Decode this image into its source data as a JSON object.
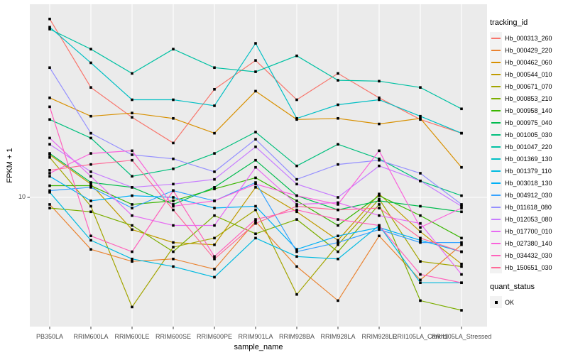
{
  "figure": {
    "panel_bg": "#EBEBEB",
    "grid_color": "#FFFFFF",
    "tick_text_color": "#4D4D4D",
    "tick_mark_color": "#333333",
    "legend_key_bg": "#F2F2F2",
    "point_color": "#000000"
  },
  "chart_data": {
    "type": "line",
    "title": "",
    "xlabel": "sample_name",
    "ylabel": "FPKM + 1",
    "y_scale": "log10",
    "y_ticks": [
      "10"
    ],
    "ylim": [
      4.6,
      30.5
    ],
    "grid": "major-on",
    "legend_position": "right",
    "point_marker": "filled-black-square",
    "categories": [
      "PB350LA",
      "RRIM600LA",
      "RRIM600LE",
      "RRIM600SE",
      "RRIM600PE",
      "RRIM901LA",
      "RRIM928BA",
      "RRIM928LA",
      "RRIM928LE",
      "RRII105LA_Control",
      "RRII105LA_Stressed"
    ],
    "series": [
      {
        "name": "Hb_000313_260",
        "color": "#F8766D",
        "values": [
          28.1,
          18.9,
          15.9,
          13.7,
          18.7,
          22.1,
          17.6,
          20.5,
          17.8,
          15.7,
          14.5
        ]
      },
      {
        "name": "Hb_000429_220",
        "color": "#EA8331",
        "values": [
          9.6,
          7.4,
          6.9,
          7.0,
          6.6,
          8.7,
          6.7,
          5.5,
          8.0,
          6.2,
          7.6
        ]
      },
      {
        "name": "Hb_000462_060",
        "color": "#D89000",
        "values": [
          17.8,
          16.0,
          16.3,
          15.8,
          14.5,
          18.5,
          15.7,
          15.8,
          15.3,
          15.8,
          11.9
        ]
      },
      {
        "name": "Hb_000544_010",
        "color": "#C09B00",
        "values": [
          12.8,
          10.8,
          8.3,
          7.7,
          7.6,
          10.6,
          9.2,
          7.8,
          10.2,
          8.2,
          6.8
        ]
      },
      {
        "name": "Hb_000671_070",
        "color": "#A3A500",
        "values": [
          12.6,
          9.5,
          5.3,
          7.5,
          7.9,
          9.3,
          5.7,
          7.6,
          9.9,
          6.9,
          6.7
        ]
      },
      {
        "name": "Hb_000853_210",
        "color": "#7CAE00",
        "values": [
          9.4,
          9.2,
          8.5,
          7.3,
          9.0,
          8.1,
          8.8,
          7.3,
          9.6,
          5.5,
          5.2
        ]
      },
      {
        "name": "Hb_000958_140",
        "color": "#39B600",
        "values": [
          10.7,
          10.7,
          9.6,
          9.8,
          10.5,
          11.2,
          9.8,
          8.5,
          10.1,
          9.0,
          7.9
        ]
      },
      {
        "name": "Hb_000975_040",
        "color": "#00BB4E",
        "values": [
          12.9,
          10.9,
          10.6,
          9.6,
          10.6,
          12.4,
          10.1,
          9.3,
          9.8,
          9.5,
          9.2
        ]
      },
      {
        "name": "Hb_001005_030",
        "color": "#00BF7D",
        "values": [
          15.7,
          14.1,
          11.3,
          11.8,
          12.9,
          14.6,
          12.0,
          13.6,
          12.5,
          11.0,
          10.1
        ]
      },
      {
        "name": "Hb_001047_220",
        "color": "#00C1A3",
        "values": [
          26.5,
          23.6,
          20.5,
          23.6,
          21.2,
          20.7,
          22.7,
          19.7,
          19.6,
          18.9,
          16.7
        ]
      },
      {
        "name": "Hb_001369_130",
        "color": "#00BFC4",
        "values": [
          26.8,
          21.8,
          17.6,
          17.6,
          17.0,
          24.4,
          15.8,
          17.1,
          17.6,
          16.0,
          14.5
        ]
      },
      {
        "name": "Hb_001379_110",
        "color": "#00BAE0",
        "values": [
          10.3,
          7.8,
          7.0,
          6.7,
          6.3,
          7.9,
          7.1,
          7.0,
          8.5,
          6.1,
          6.1
        ]
      },
      {
        "name": "Hb_003018_130",
        "color": "#00B0F6",
        "values": [
          11.3,
          9.8,
          10.1,
          10.0,
          9.4,
          9.5,
          7.4,
          8.0,
          8.4,
          7.8,
          7.3
        ]
      },
      {
        "name": "Hb_004912_030",
        "color": "#35A2FF",
        "values": [
          10.4,
          10.6,
          9.4,
          10.4,
          9.8,
          10.9,
          7.3,
          7.7,
          8.3,
          7.7,
          7.7
        ]
      },
      {
        "name": "Hb_011618_080",
        "color": "#9590FF",
        "values": [
          21.2,
          14.5,
          12.8,
          12.5,
          11.6,
          14.0,
          11.1,
          12.1,
          12.4,
          11.5,
          9.6
        ]
      },
      {
        "name": "Hb_012053_080",
        "color": "#C77CFF",
        "values": [
          13.6,
          11.6,
          10.6,
          10.8,
          11.1,
          13.4,
          10.8,
          10.0,
          12.0,
          11.0,
          9.5
        ]
      },
      {
        "name": "Hb_017700_010",
        "color": "#E76BF3",
        "values": [
          14.1,
          11.3,
          9.0,
          8.5,
          8.5,
          11.9,
          9.6,
          9.7,
          9.0,
          8.6,
          6.4
        ]
      },
      {
        "name": "Hb_027380_140",
        "color": "#FA62DB",
        "values": [
          11.5,
          12.9,
          13.1,
          9.5,
          9.8,
          10.8,
          10.1,
          9.6,
          13.1,
          8.4,
          9.4
        ]
      },
      {
        "name": "Hb_034432_030",
        "color": "#FF62BC",
        "values": [
          16.9,
          8.0,
          7.3,
          10.4,
          7.1,
          8.8,
          9.3,
          8.8,
          8.5,
          6.4,
          6.1
        ]
      },
      {
        "name": "Hb_150651_030",
        "color": "#FF6A98",
        "values": [
          11.7,
          12.1,
          12.4,
          9.3,
          7.0,
          8.6,
          9.5,
          9.3,
          9.4,
          7.9,
          7.3
        ]
      }
    ],
    "legend": {
      "series_legend_title": "tracking_id",
      "quant_legend_title": "quant_status",
      "quant_items": [
        {
          "label": "OK"
        }
      ]
    }
  }
}
